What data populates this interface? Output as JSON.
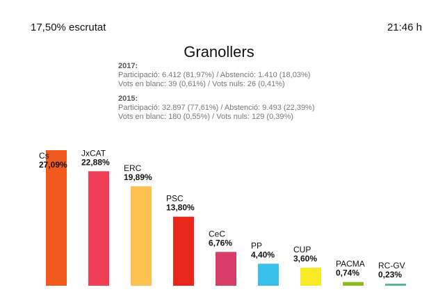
{
  "header": {
    "counted": "17,50% escrutat",
    "time": "21:46 h"
  },
  "chart_data": {
    "type": "bar",
    "title": "Granollers",
    "stats": {
      "y2017": {
        "year": "2017:",
        "line1": "Participació: 6.412 (81,97%) / Abstenció: 1.410 (18,03%)",
        "line2": "Vots en blanc: 39 (0,61%) / Vots nuls: 26 (0,41%)"
      },
      "y2015": {
        "year": "2015:",
        "line1": "Participació: 32.897 (77,61%) / Abstenció: 9.493 (22,39%)",
        "line2": "Vots en blanc: 180 (0,55%) / Vots nuls: 129 (0,39%)"
      }
    },
    "categories": [
      "Cs",
      "JxCAT",
      "ERC",
      "PSC",
      "CeC",
      "PP",
      "CUP",
      "PACMA",
      "RC-GV"
    ],
    "values": [
      27.09,
      22.88,
      19.89,
      13.8,
      6.76,
      4.4,
      3.6,
      0.74,
      0.23
    ],
    "value_labels": [
      "27,09%",
      "22,88%",
      "19,89%",
      "13,80%",
      "6,76%",
      "4,40%",
      "3,60%",
      "0,74%",
      "0,23%"
    ],
    "colors": [
      "#f05a1e",
      "#ef3e55",
      "#fcc150",
      "#e8261a",
      "#d73f6a",
      "#38c0ea",
      "#f8ea24",
      "#8ebc1e",
      "#5cb790"
    ],
    "ylim": [
      0,
      27.09
    ]
  }
}
